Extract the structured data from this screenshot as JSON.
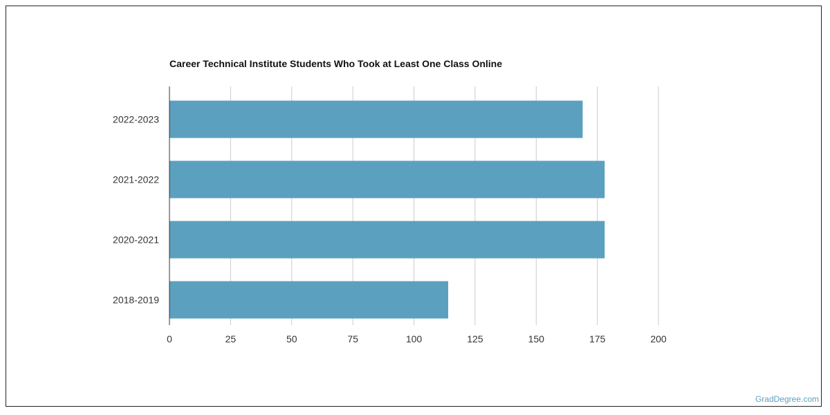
{
  "chart_data": {
    "type": "bar",
    "orientation": "horizontal",
    "title": "Career Technical Institute Students Who Took at Least One Class Online",
    "categories": [
      "2022-2023",
      "2021-2022",
      "2020-2021",
      "2018-2019"
    ],
    "values": [
      169,
      178,
      178,
      114
    ],
    "xlim": [
      0,
      200
    ],
    "xticks": [
      0,
      25,
      50,
      75,
      100,
      125,
      150,
      175,
      200
    ],
    "grid": true,
    "bar_color": "#5ba1bf",
    "grid_color": "#cccccc"
  },
  "watermark": "GradDegree.com"
}
